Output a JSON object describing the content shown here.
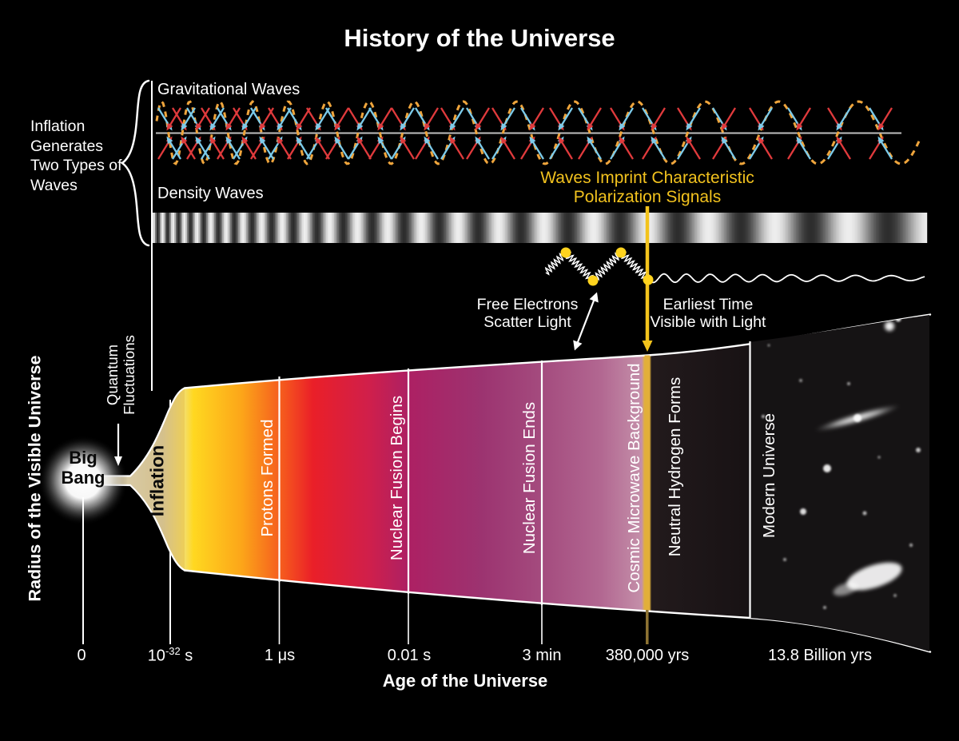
{
  "title": "History of the Universe",
  "colors": {
    "background": "#000000",
    "wave_gold": "#EFA53C",
    "arrow_red": "#E03A3C",
    "arrow_blue": "#7CCBEA",
    "accent_yellow": "#F3C31C",
    "dot_yellow": "#FFD31E",
    "white": "#FFFFFF"
  },
  "top_section": {
    "bracket_label": "Inflation\nGenerates\nTwo Types of\nWaves",
    "gravitational_waves_label": "Gravitational Waves",
    "density_waves_label": "Density Waves",
    "polarization_note": "Waves Imprint Characteristic\nPolarization Signals",
    "free_electrons_note": "Free Electrons\nScatter Light",
    "earliest_time_note": "Earliest Time\nVisible with Light"
  },
  "cone": {
    "y_axis_label": "Radius of the Visible Universe",
    "big_bang_label": "Big\nBang",
    "quantum_fluctuations_label": "Quantum\nFluctuations",
    "inflation_label": "Inflation",
    "milestones": [
      "Protons Formed",
      "Nuclear Fusion Begins",
      "Nuclear Fusion Ends",
      "Cosmic Microwave Background",
      "Neutral Hydrogen Forms",
      "Modern Universe"
    ]
  },
  "axis": {
    "label": "Age of the Universe",
    "ticks": [
      {
        "label": "0"
      },
      {
        "base": "10",
        "exp": "-32",
        "unit": " s"
      },
      {
        "label": "1 μs"
      },
      {
        "label": "0.01 s"
      },
      {
        "label": "3 min"
      },
      {
        "label": "380,000 yrs"
      },
      {
        "label": "13.8 Billion yrs"
      }
    ]
  }
}
